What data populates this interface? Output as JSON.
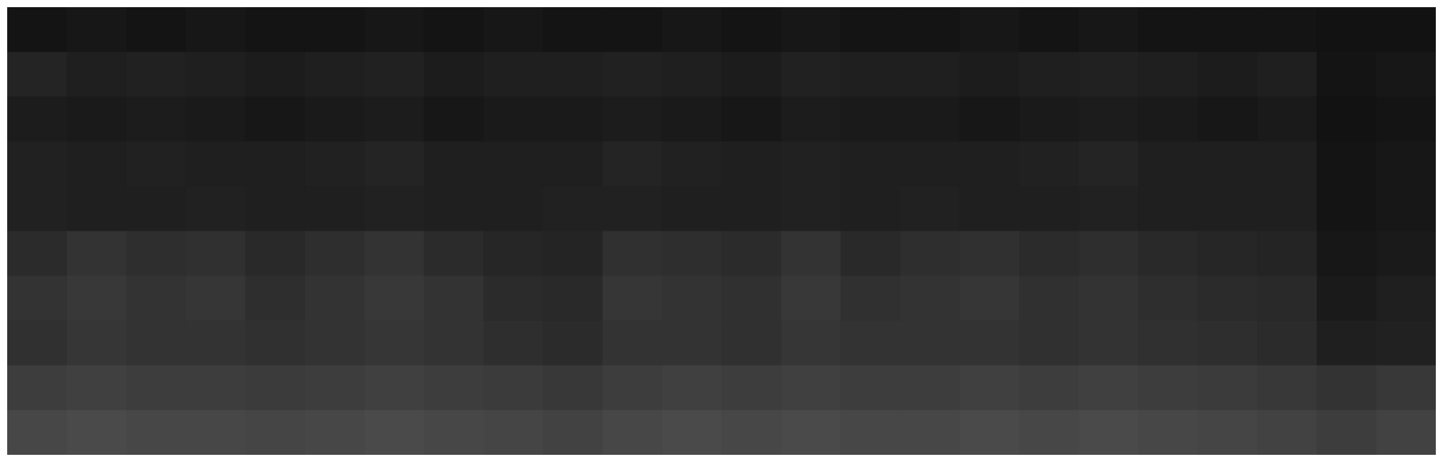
{
  "chart_data": {
    "type": "heatmap",
    "tick_labels": false,
    "cells": [
      [
        0.08,
        0.09,
        0.08,
        0.09,
        0.08,
        0.08,
        0.09,
        0.08,
        0.09,
        0.08,
        0.08,
        0.09,
        0.08,
        0.09,
        0.08,
        0.08,
        0.09,
        0.08,
        0.09,
        0.08,
        0.08,
        0.08,
        0.07,
        0.07
      ],
      [
        0.14,
        0.12,
        0.13,
        0.12,
        0.11,
        0.12,
        0.13,
        0.11,
        0.12,
        0.12,
        0.13,
        0.12,
        0.11,
        0.13,
        0.12,
        0.12,
        0.11,
        0.12,
        0.13,
        0.12,
        0.11,
        0.12,
        0.08,
        0.09
      ],
      [
        0.11,
        0.1,
        0.11,
        0.1,
        0.09,
        0.1,
        0.11,
        0.09,
        0.1,
        0.1,
        0.11,
        0.1,
        0.09,
        0.11,
        0.1,
        0.1,
        0.09,
        0.1,
        0.11,
        0.1,
        0.09,
        0.1,
        0.07,
        0.08
      ],
      [
        0.13,
        0.12,
        0.13,
        0.12,
        0.12,
        0.13,
        0.14,
        0.12,
        0.12,
        0.12,
        0.14,
        0.13,
        0.12,
        0.13,
        0.12,
        0.12,
        0.12,
        0.13,
        0.14,
        0.12,
        0.12,
        0.12,
        0.08,
        0.09
      ],
      [
        0.13,
        0.12,
        0.12,
        0.13,
        0.12,
        0.12,
        0.13,
        0.12,
        0.12,
        0.13,
        0.13,
        0.12,
        0.12,
        0.13,
        0.12,
        0.13,
        0.12,
        0.12,
        0.13,
        0.12,
        0.12,
        0.12,
        0.08,
        0.09
      ],
      [
        0.17,
        0.2,
        0.18,
        0.19,
        0.16,
        0.18,
        0.2,
        0.17,
        0.15,
        0.14,
        0.19,
        0.18,
        0.17,
        0.2,
        0.16,
        0.18,
        0.19,
        0.17,
        0.18,
        0.16,
        0.15,
        0.14,
        0.09,
        0.1
      ],
      [
        0.2,
        0.22,
        0.2,
        0.21,
        0.18,
        0.2,
        0.22,
        0.2,
        0.17,
        0.16,
        0.21,
        0.2,
        0.19,
        0.22,
        0.19,
        0.2,
        0.21,
        0.19,
        0.2,
        0.18,
        0.17,
        0.16,
        0.1,
        0.12
      ],
      [
        0.19,
        0.21,
        0.2,
        0.2,
        0.19,
        0.2,
        0.21,
        0.2,
        0.18,
        0.17,
        0.2,
        0.2,
        0.19,
        0.21,
        0.2,
        0.2,
        0.2,
        0.19,
        0.2,
        0.19,
        0.18,
        0.17,
        0.12,
        0.13
      ],
      [
        0.24,
        0.25,
        0.24,
        0.24,
        0.23,
        0.24,
        0.25,
        0.24,
        0.23,
        0.22,
        0.24,
        0.25,
        0.24,
        0.25,
        0.24,
        0.24,
        0.25,
        0.24,
        0.25,
        0.24,
        0.23,
        0.22,
        0.2,
        0.22
      ],
      [
        0.28,
        0.29,
        0.28,
        0.28,
        0.27,
        0.28,
        0.29,
        0.28,
        0.27,
        0.26,
        0.28,
        0.29,
        0.28,
        0.29,
        0.28,
        0.28,
        0.29,
        0.28,
        0.29,
        0.28,
        0.27,
        0.26,
        0.24,
        0.26
      ]
    ]
  }
}
